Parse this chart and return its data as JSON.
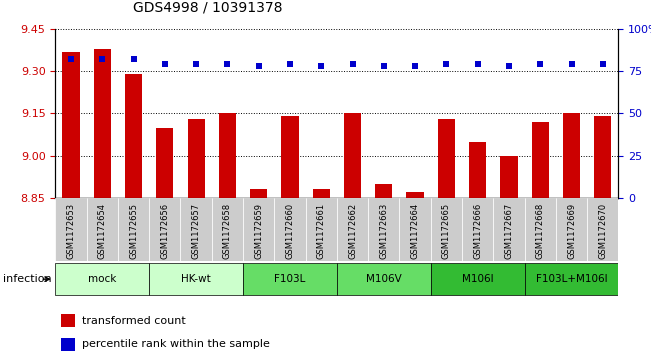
{
  "title": "GDS4998 / 10391378",
  "samples": [
    "GSM1172653",
    "GSM1172654",
    "GSM1172655",
    "GSM1172656",
    "GSM1172657",
    "GSM1172658",
    "GSM1172659",
    "GSM1172660",
    "GSM1172661",
    "GSM1172662",
    "GSM1172663",
    "GSM1172664",
    "GSM1172665",
    "GSM1172666",
    "GSM1172667",
    "GSM1172668",
    "GSM1172669",
    "GSM1172670"
  ],
  "bar_values": [
    9.37,
    9.38,
    9.29,
    9.1,
    9.13,
    9.15,
    8.88,
    9.14,
    8.88,
    9.15,
    8.9,
    8.87,
    9.13,
    9.05,
    9.0,
    9.12,
    9.15,
    9.14
  ],
  "percentile_values": [
    82,
    82,
    82,
    79,
    79,
    79,
    78,
    79,
    78,
    79,
    78,
    78,
    79,
    79,
    78,
    79,
    79,
    79
  ],
  "ylim_left": [
    8.85,
    9.45
  ],
  "ylim_right": [
    0,
    100
  ],
  "yticks_left": [
    8.85,
    9.0,
    9.15,
    9.3,
    9.45
  ],
  "yticks_right": [
    0,
    25,
    50,
    75,
    100
  ],
  "bar_color": "#cc0000",
  "dot_color": "#0000cc",
  "groups": [
    {
      "label": "mock",
      "start": 0,
      "end": 2,
      "color": "#ccffcc"
    },
    {
      "label": "HK-wt",
      "start": 3,
      "end": 5,
      "color": "#ccffcc"
    },
    {
      "label": "F103L",
      "start": 6,
      "end": 8,
      "color": "#66dd66"
    },
    {
      "label": "M106V",
      "start": 9,
      "end": 11,
      "color": "#66dd66"
    },
    {
      "label": "M106I",
      "start": 12,
      "end": 14,
      "color": "#33bb33"
    },
    {
      "label": "F103L+M106I",
      "start": 15,
      "end": 17,
      "color": "#33bb33"
    }
  ],
  "infection_label": "infection",
  "legend_bar_label": "transformed count",
  "legend_dot_label": "percentile rank within the sample",
  "left_tick_color": "#cc0000",
  "right_tick_color": "#0000cc",
  "sample_bg_color": "#cccccc",
  "xlim": [
    -0.5,
    17.5
  ]
}
